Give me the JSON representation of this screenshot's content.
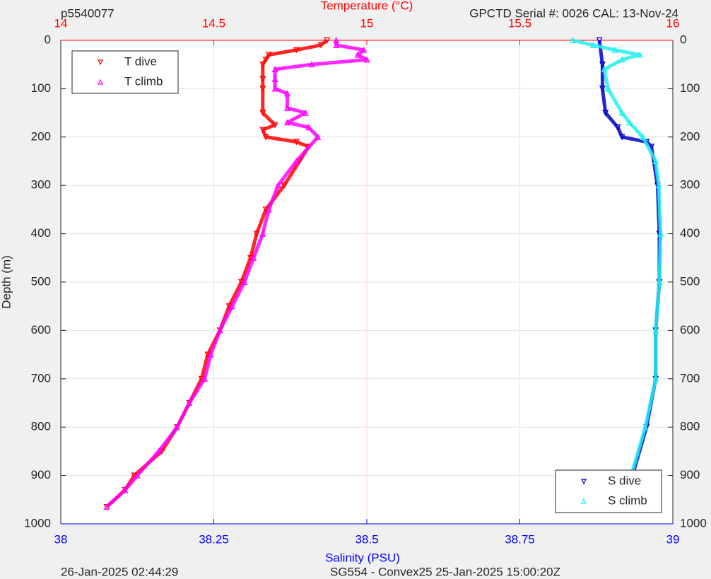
{
  "chart_data": {
    "type": "scatter",
    "title": "p5540077",
    "subtitle": "GPCTD Serial #: 0026 CAL: 13-Nov-24",
    "x2label": "Temperature (°C)",
    "xlabel": "Salinity (PSU)",
    "ylabel": "Depth (m)",
    "footer_left": "26-Jan-2025 02:44:29",
    "footer_right": "SG554 - Convex25 25-Jan-2025 15:00:20Z",
    "xlim": [
      38,
      39
    ],
    "xticks": [
      38,
      38.25,
      38.5,
      38.75,
      39
    ],
    "x_color": "#0000ff",
    "x2lim": [
      14,
      16
    ],
    "x2ticks": [
      14,
      14.5,
      15,
      15.5,
      16
    ],
    "x2_color": "#ff0000",
    "ylim": [
      0,
      1000
    ],
    "y_reversed": true,
    "yticks": [
      0,
      100,
      200,
      300,
      400,
      500,
      600,
      700,
      800,
      900,
      1000
    ],
    "grid": true,
    "series": [
      {
        "name": "T dive",
        "color": "#ff0000",
        "marker": "v",
        "axis": "x2",
        "legend": "upper left",
        "y": [
          0,
          10,
          20,
          30,
          40,
          50,
          80,
          100,
          150,
          175,
          185,
          200,
          210,
          220,
          250,
          300,
          350,
          400,
          450,
          500,
          550,
          600,
          650,
          700,
          750,
          800,
          850,
          900,
          930,
          965
        ],
        "x": [
          14.87,
          14.85,
          14.77,
          14.68,
          14.67,
          14.66,
          14.66,
          14.66,
          14.66,
          14.7,
          14.66,
          14.67,
          14.77,
          14.81,
          14.78,
          14.73,
          14.67,
          14.64,
          14.62,
          14.59,
          14.55,
          14.52,
          14.48,
          14.46,
          14.42,
          14.38,
          14.33,
          14.24,
          14.21,
          14.15
        ]
      },
      {
        "name": "T climb",
        "color": "#ff00ff",
        "marker": "^",
        "axis": "x2",
        "legend": "upper left",
        "y": [
          0,
          10,
          20,
          30,
          40,
          50,
          60,
          80,
          100,
          110,
          140,
          150,
          170,
          180,
          200,
          250,
          300,
          350,
          400,
          450,
          500,
          550,
          600,
          650,
          700,
          750,
          800,
          850,
          900,
          930,
          965
        ],
        "x": [
          14.9,
          14.9,
          14.99,
          14.97,
          15.0,
          14.82,
          14.7,
          14.7,
          14.7,
          14.74,
          14.74,
          14.8,
          14.74,
          14.81,
          14.84,
          14.77,
          14.71,
          14.68,
          14.66,
          14.63,
          14.6,
          14.56,
          14.52,
          14.49,
          14.47,
          14.42,
          14.38,
          14.32,
          14.25,
          14.21,
          14.15
        ]
      },
      {
        "name": "S dive",
        "color": "#0000cd",
        "marker": "v",
        "axis": "x",
        "legend": "lower right",
        "y": [
          0,
          50,
          100,
          150,
          180,
          200,
          210,
          220,
          300,
          400,
          500,
          600,
          700,
          800,
          900,
          965
        ],
        "x": [
          38.88,
          38.885,
          38.885,
          38.89,
          38.91,
          38.917,
          38.957,
          38.965,
          38.975,
          38.978,
          38.978,
          38.972,
          38.972,
          38.957,
          38.934,
          38.917
        ]
      },
      {
        "name": "S climb",
        "color": "#22eeee",
        "marker": "^",
        "axis": "x",
        "legend": "lower right",
        "y": [
          0,
          10,
          20,
          30,
          40,
          60,
          100,
          150,
          170,
          200,
          250,
          300,
          400,
          500,
          600,
          700,
          800,
          900,
          965
        ],
        "x": [
          38.836,
          38.87,
          38.905,
          38.946,
          38.917,
          38.888,
          38.894,
          38.917,
          38.929,
          38.951,
          38.972,
          38.977,
          38.98,
          38.978,
          38.972,
          38.972,
          38.955,
          38.932,
          38.918
        ]
      }
    ]
  }
}
